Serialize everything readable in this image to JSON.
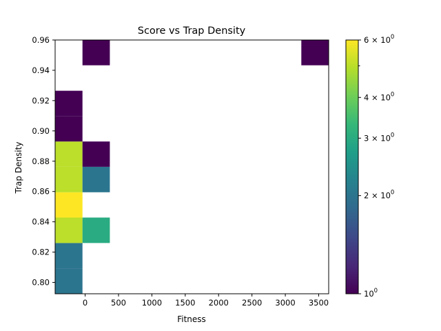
{
  "chart_data": {
    "type": "heatmap",
    "title": "Score vs Trap Density",
    "xlabel": "Fitness",
    "ylabel": "Trap Density",
    "xlim": [
      -450,
      3650
    ],
    "ylim": [
      0.7925,
      0.96
    ],
    "x_ticks": [
      0,
      500,
      1000,
      1500,
      2000,
      2500,
      3000,
      3500
    ],
    "y_ticks": [
      0.8,
      0.82,
      0.84,
      0.86,
      0.88,
      0.9,
      0.92,
      0.94,
      0.96
    ],
    "y_tick_labels": [
      "0.80",
      "0.82",
      "0.84",
      "0.86",
      "0.88",
      "0.90",
      "0.92",
      "0.94",
      "0.96"
    ],
    "grid": false,
    "colormap": "viridis",
    "colorbar": {
      "scale": "log",
      "min": 1,
      "max": 6,
      "tick_labels": [
        {
          "value": 1,
          "base": "10",
          "exp": "0"
        },
        {
          "value": 2,
          "base": "2 × 10",
          "exp": "0"
        },
        {
          "value": 3,
          "base": "3 × 10",
          "exp": "0"
        },
        {
          "value": 4,
          "base": "4 × 10",
          "exp": "0"
        },
        {
          "value": 6,
          "base": "6 × 10",
          "exp": "0"
        }
      ],
      "minor_ticks": [
        5
      ]
    },
    "cells": [
      {
        "x0": -450,
        "x1": -40,
        "y0": 0.7925,
        "y1": 0.8093,
        "count": 2
      },
      {
        "x0": -450,
        "x1": -40,
        "y0": 0.8093,
        "y1": 0.826,
        "count": 2
      },
      {
        "x0": -450,
        "x1": -40,
        "y0": 0.826,
        "y1": 0.8428,
        "count": 5
      },
      {
        "x0": -40,
        "x1": 370,
        "y0": 0.826,
        "y1": 0.8428,
        "count": 3
      },
      {
        "x0": -450,
        "x1": -40,
        "y0": 0.8428,
        "y1": 0.8595,
        "count": 6
      },
      {
        "x0": -450,
        "x1": -40,
        "y0": 0.8595,
        "y1": 0.8763,
        "count": 5
      },
      {
        "x0": -40,
        "x1": 370,
        "y0": 0.8595,
        "y1": 0.8763,
        "count": 2
      },
      {
        "x0": -450,
        "x1": -40,
        "y0": 0.8763,
        "y1": 0.893,
        "count": 5
      },
      {
        "x0": -40,
        "x1": 370,
        "y0": 0.8763,
        "y1": 0.893,
        "count": 1
      },
      {
        "x0": -450,
        "x1": -40,
        "y0": 0.893,
        "y1": 0.9098,
        "count": 1
      },
      {
        "x0": -450,
        "x1": -40,
        "y0": 0.9098,
        "y1": 0.9265,
        "count": 1
      },
      {
        "x0": -40,
        "x1": 370,
        "y0": 0.9433,
        "y1": 0.96,
        "count": 1
      },
      {
        "x0": 3240,
        "x1": 3650,
        "y0": 0.9433,
        "y1": 0.96,
        "count": 1
      }
    ]
  },
  "colors": {
    "viridis_stops": [
      "#440154",
      "#482878",
      "#3e4989",
      "#31688e",
      "#26828e",
      "#1f9e89",
      "#35b779",
      "#6ece58",
      "#b5de2b",
      "#fde725"
    ]
  }
}
